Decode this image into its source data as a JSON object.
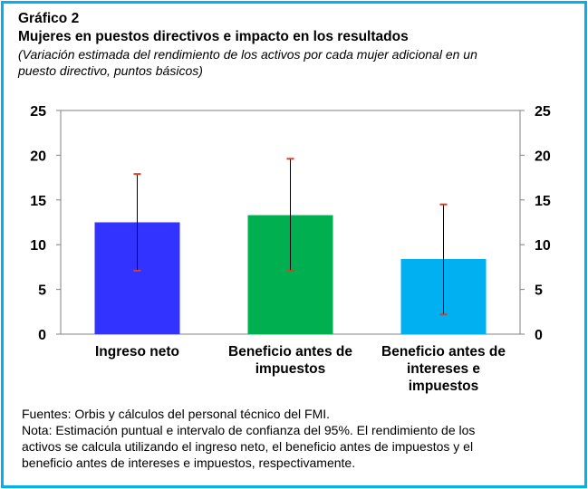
{
  "header": {
    "label": "Gráfico 2",
    "title": "Mujeres en puestos directivos e impacto en los resultados",
    "subtitle_line1": "(Variación estimada del rendimiento de los activos por cada mujer adicional en un",
    "subtitle_line2": "puesto directivo, puntos básicos)"
  },
  "footer": {
    "line1": "Fuentes: Orbis y cálculos del personal técnico del FMI.",
    "line2": "Nota: Estimación puntual e intervalo de confianza del 95%. El rendimiento de los",
    "line3": "activos se calcula utilizando el ingreso neto, el beneficio antes de impuestos y el",
    "line4": "beneficio antes de intereses e impuestos, respectivamente."
  },
  "colors": {
    "border": "#00b0f0",
    "bar1": "#3333ff",
    "bar2": "#00b050",
    "bar3": "#00b0f0",
    "error_bar": "#000000",
    "error_cap": "#e03c1e"
  },
  "chart_data": {
    "type": "bar",
    "categories": [
      "Ingreso neto",
      "Beneficio antes de impuestos",
      "Beneficio antes de intereses e impuestos"
    ],
    "category_lines": [
      [
        "Ingreso neto"
      ],
      [
        "Beneficio antes de",
        "impuestos"
      ],
      [
        "Beneficio antes de",
        "intereses e",
        "impuestos"
      ]
    ],
    "values": [
      12.5,
      13.3,
      8.4
    ],
    "ci_low": [
      7.1,
      7.1,
      2.2
    ],
    "ci_high": [
      17.9,
      19.6,
      14.5
    ],
    "bar_colors": [
      "#3333ff",
      "#00b050",
      "#00b0f0"
    ],
    "ylim": [
      0,
      25
    ],
    "yticks": [
      "0",
      "5",
      "10",
      "15",
      "20",
      "25"
    ],
    "secondary_y_axis": true,
    "grid": false,
    "legend": "none"
  }
}
